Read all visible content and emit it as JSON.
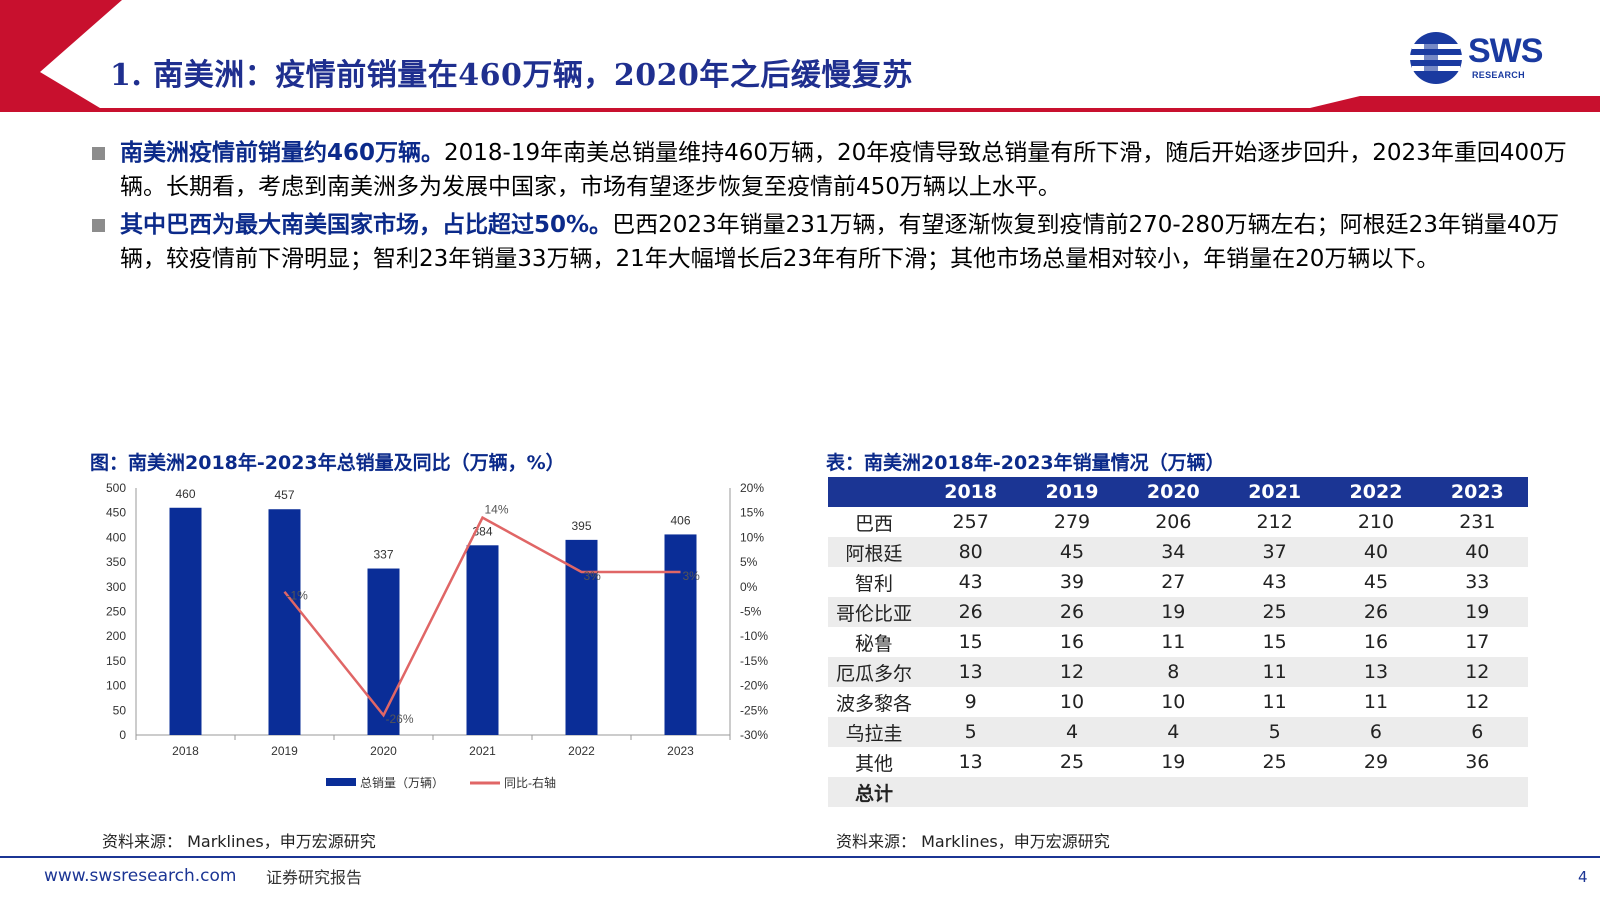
{
  "header": {
    "title": "1. 南美洲：疫情前销量在460万辆，2020年之后缓慢复苏",
    "logo_text": "SWS",
    "logo_sub": "RESEARCH",
    "colors": {
      "red": "#c8102e",
      "blue": "#1a3aa0"
    }
  },
  "bullets": [
    {
      "bold": "南美洲疫情前销量约460万辆。",
      "text": "2018-19年南美总销量维持460万辆，20年疫情导致总销量有所下滑，随后开始逐步回升，2023年重回400万辆。长期看，考虑到南美洲多为发展中国家，市场有望逐步恢复至疫情前450万辆以上水平。"
    },
    {
      "bold": "其中巴西为最大南美国家市场，占比超过50%。",
      "text": "巴西2023年销量231万辆，有望逐渐恢复到疫情前270-280万辆左右；阿根廷23年销量40万辆，较疫情前下滑明显；智利23年销量33万辆，21年大幅增长后23年有所下滑；其他市场总量相对较小，年销量在20万辆以下。"
    }
  ],
  "chart_title": "图：南美洲2018年-2023年总销量及同比（万辆，%）",
  "chart_data": {
    "type": "bar",
    "categories": [
      "2018",
      "2019",
      "2020",
      "2021",
      "2022",
      "2023"
    ],
    "series": [
      {
        "name": "总销量（万辆）",
        "type": "bar",
        "values": [
          460,
          457,
          337,
          384,
          395,
          406
        ],
        "labels": [
          "460",
          "457",
          "337",
          "384",
          "395",
          "406"
        ],
        "color": "#0a2d97"
      },
      {
        "name": "同比-右轴",
        "type": "line",
        "axis": "right",
        "values": [
          null,
          -1,
          -26,
          14,
          3,
          3
        ],
        "labels": [
          "",
          "-1%",
          "-26%",
          "14%",
          "3%",
          "3%"
        ],
        "color": "#e06666"
      }
    ],
    "ylim": [
      0,
      500
    ],
    "yticks": [
      "0",
      "50",
      "100",
      "150",
      "200",
      "250",
      "300",
      "350",
      "400",
      "450",
      "500"
    ],
    "y2lim": [
      -30,
      20
    ],
    "y2ticks": [
      "-30%",
      "-25%",
      "-20%",
      "-15%",
      "-10%",
      "-5%",
      "0%",
      "5%",
      "10%",
      "15%",
      "20%"
    ],
    "legend_position": "bottom",
    "grid": false
  },
  "chart_source": "资料来源：  Marklines，申万宏源研究",
  "table_title": "表：南美洲2018年-2023年销量情况（万辆）",
  "table": {
    "headers": [
      "",
      "2018",
      "2019",
      "2020",
      "2021",
      "2022",
      "2023"
    ],
    "rows": [
      [
        "巴西",
        "257",
        "279",
        "206",
        "212",
        "210",
        "231"
      ],
      [
        "阿根廷",
        "80",
        "45",
        "34",
        "37",
        "40",
        "40"
      ],
      [
        "智利",
        "43",
        "39",
        "27",
        "43",
        "45",
        "33"
      ],
      [
        "哥伦比亚",
        "26",
        "26",
        "19",
        "25",
        "26",
        "19"
      ],
      [
        "秘鲁",
        "15",
        "16",
        "11",
        "15",
        "16",
        "17"
      ],
      [
        "厄瓜多尔",
        "13",
        "12",
        "8",
        "11",
        "13",
        "12"
      ],
      [
        "波多黎各",
        "9",
        "10",
        "10",
        "11",
        "11",
        "12"
      ],
      [
        "乌拉圭",
        "5",
        "4",
        "4",
        "5",
        "6",
        "6"
      ],
      [
        "其他",
        "13",
        "25",
        "19",
        "25",
        "29",
        "36"
      ],
      [
        "总计",
        "",
        "",
        "",
        "",
        "",
        ""
      ]
    ]
  },
  "table_source": "资料来源：  Marklines，申万宏源研究",
  "footer": {
    "url": "www.swsresearch.com",
    "label": "证券研究报告",
    "page": "4"
  }
}
